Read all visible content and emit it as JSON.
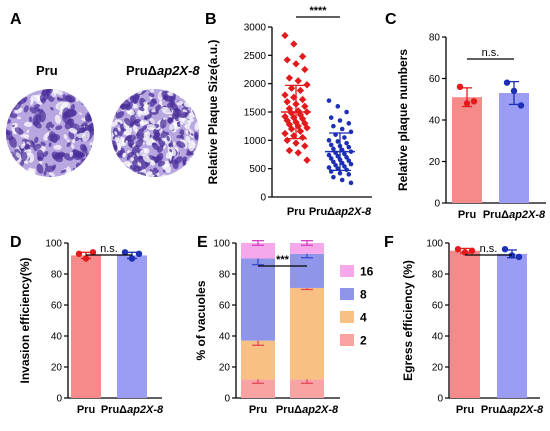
{
  "colors": {
    "pru_fill": "#f48a8a",
    "pru_point": "#e31a1c",
    "mut_fill": "#9b9cf3",
    "mut_point": "#1c2fb5",
    "axis": "#000000",
    "stain_bg": "#b7a6df",
    "stain_dark": "#4a2f9a",
    "stack_2": "#f9a3a3",
    "stack_4": "#f8c083",
    "stack_8": "#8f96ea",
    "stack_16": "#f6a9ea"
  },
  "panel_letters": {
    "A": "A",
    "B": "B",
    "C": "C",
    "D": "D",
    "E": "E",
    "F": "F"
  },
  "panelA": {
    "label_wt": "Pru",
    "label_mut_prefix": "PruΔ",
    "label_mut_italic": "ap2X-8"
  },
  "xt": {
    "pru": "Pru",
    "mut_prefix": "PruΔ",
    "mut_italic": "ap2X-8"
  },
  "chart_data": [
    {
      "panel": "B",
      "type": "scatter",
      "ylabel": "Relative Plaque Size(a.u.)",
      "ylim": [
        0,
        3000
      ],
      "yticks": [
        0,
        500,
        1000,
        1500,
        2000,
        2500,
        3000
      ],
      "categories": [
        "Pru",
        "PruΔap2X-8"
      ],
      "significance": "****",
      "series": [
        {
          "mean": 1500,
          "sd": 470,
          "points": [
            2850,
            2700,
            2480,
            2420,
            2350,
            2250,
            2100,
            2050,
            1980,
            1920,
            1880,
            1800,
            1760,
            1720,
            1680,
            1640,
            1600,
            1560,
            1520,
            1500,
            1480,
            1450,
            1420,
            1400,
            1380,
            1350,
            1320,
            1300,
            1280,
            1250,
            1220,
            1200,
            1160,
            1120,
            1080,
            1050,
            1000,
            950,
            900,
            820,
            780,
            650
          ]
        },
        {
          "mean": 800,
          "sd": 330,
          "points": [
            1700,
            1600,
            1500,
            1400,
            1350,
            1300,
            1250,
            1200,
            1150,
            1100,
            1050,
            1000,
            980,
            950,
            920,
            900,
            880,
            850,
            830,
            800,
            780,
            760,
            740,
            720,
            700,
            680,
            660,
            640,
            620,
            600,
            580,
            560,
            540,
            520,
            500,
            480,
            450,
            420,
            400,
            350,
            300,
            250
          ]
        }
      ]
    },
    {
      "panel": "C",
      "type": "bar",
      "ylabel": "Relative plaque numbers",
      "ylim": [
        0,
        80
      ],
      "yticks": [
        0,
        20,
        40,
        60,
        80
      ],
      "categories": [
        "Pru",
        "PruΔap2X-8"
      ],
      "significance": "n.s.",
      "series": [
        {
          "value": 51,
          "sd": 4.5,
          "points": [
            56,
            48,
            49
          ]
        },
        {
          "value": 53,
          "sd": 5.5,
          "points": [
            58,
            54,
            47
          ]
        }
      ]
    },
    {
      "panel": "D",
      "type": "bar",
      "ylabel": "Invasion efficiency(%)",
      "ylim": [
        0,
        100
      ],
      "yticks": [
        0,
        20,
        40,
        60,
        80,
        100
      ],
      "categories": [
        "Pru",
        "PruΔap2X-8"
      ],
      "significance": "n.s.",
      "series": [
        {
          "value": 92,
          "sd": 2,
          "points": [
            93,
            90,
            94
          ]
        },
        {
          "value": 92,
          "sd": 2,
          "points": [
            94,
            90,
            93
          ]
        }
      ]
    },
    {
      "panel": "E",
      "type": "bar",
      "stacked": true,
      "ylabel": "% of vacuoles",
      "ylim": [
        0,
        100
      ],
      "yticks": [
        0,
        20,
        40,
        60,
        80,
        100
      ],
      "categories": [
        "Pru",
        "PruΔap2X-8"
      ],
      "significance": "***",
      "legend": [
        "16",
        "8",
        "4",
        "2"
      ],
      "series": [
        {
          "name": "2",
          "values": [
            12,
            12
          ],
          "sd": [
            2.5,
            2.5
          ]
        },
        {
          "name": "4",
          "values": [
            25,
            59
          ],
          "sd": [
            3,
            1
          ]
        },
        {
          "name": "8",
          "values": [
            53,
            22
          ],
          "sd": [
            4,
            2.5
          ]
        },
        {
          "name": "16",
          "values": [
            10,
            7
          ],
          "sd": [
            1.5,
            1.5
          ]
        }
      ]
    },
    {
      "panel": "F",
      "type": "bar",
      "ylabel": "Egress efficiency (%)",
      "ylim": [
        0,
        100
      ],
      "yticks": [
        0,
        20,
        40,
        60,
        80,
        100
      ],
      "categories": [
        "Pru",
        "PruΔap2X-8"
      ],
      "significance": "n.s.",
      "series": [
        {
          "value": 95,
          "sd": 1.5,
          "points": [
            96,
            94,
            95
          ]
        },
        {
          "value": 93,
          "sd": 2.5,
          "points": [
            96,
            92,
            91
          ]
        }
      ]
    }
  ]
}
